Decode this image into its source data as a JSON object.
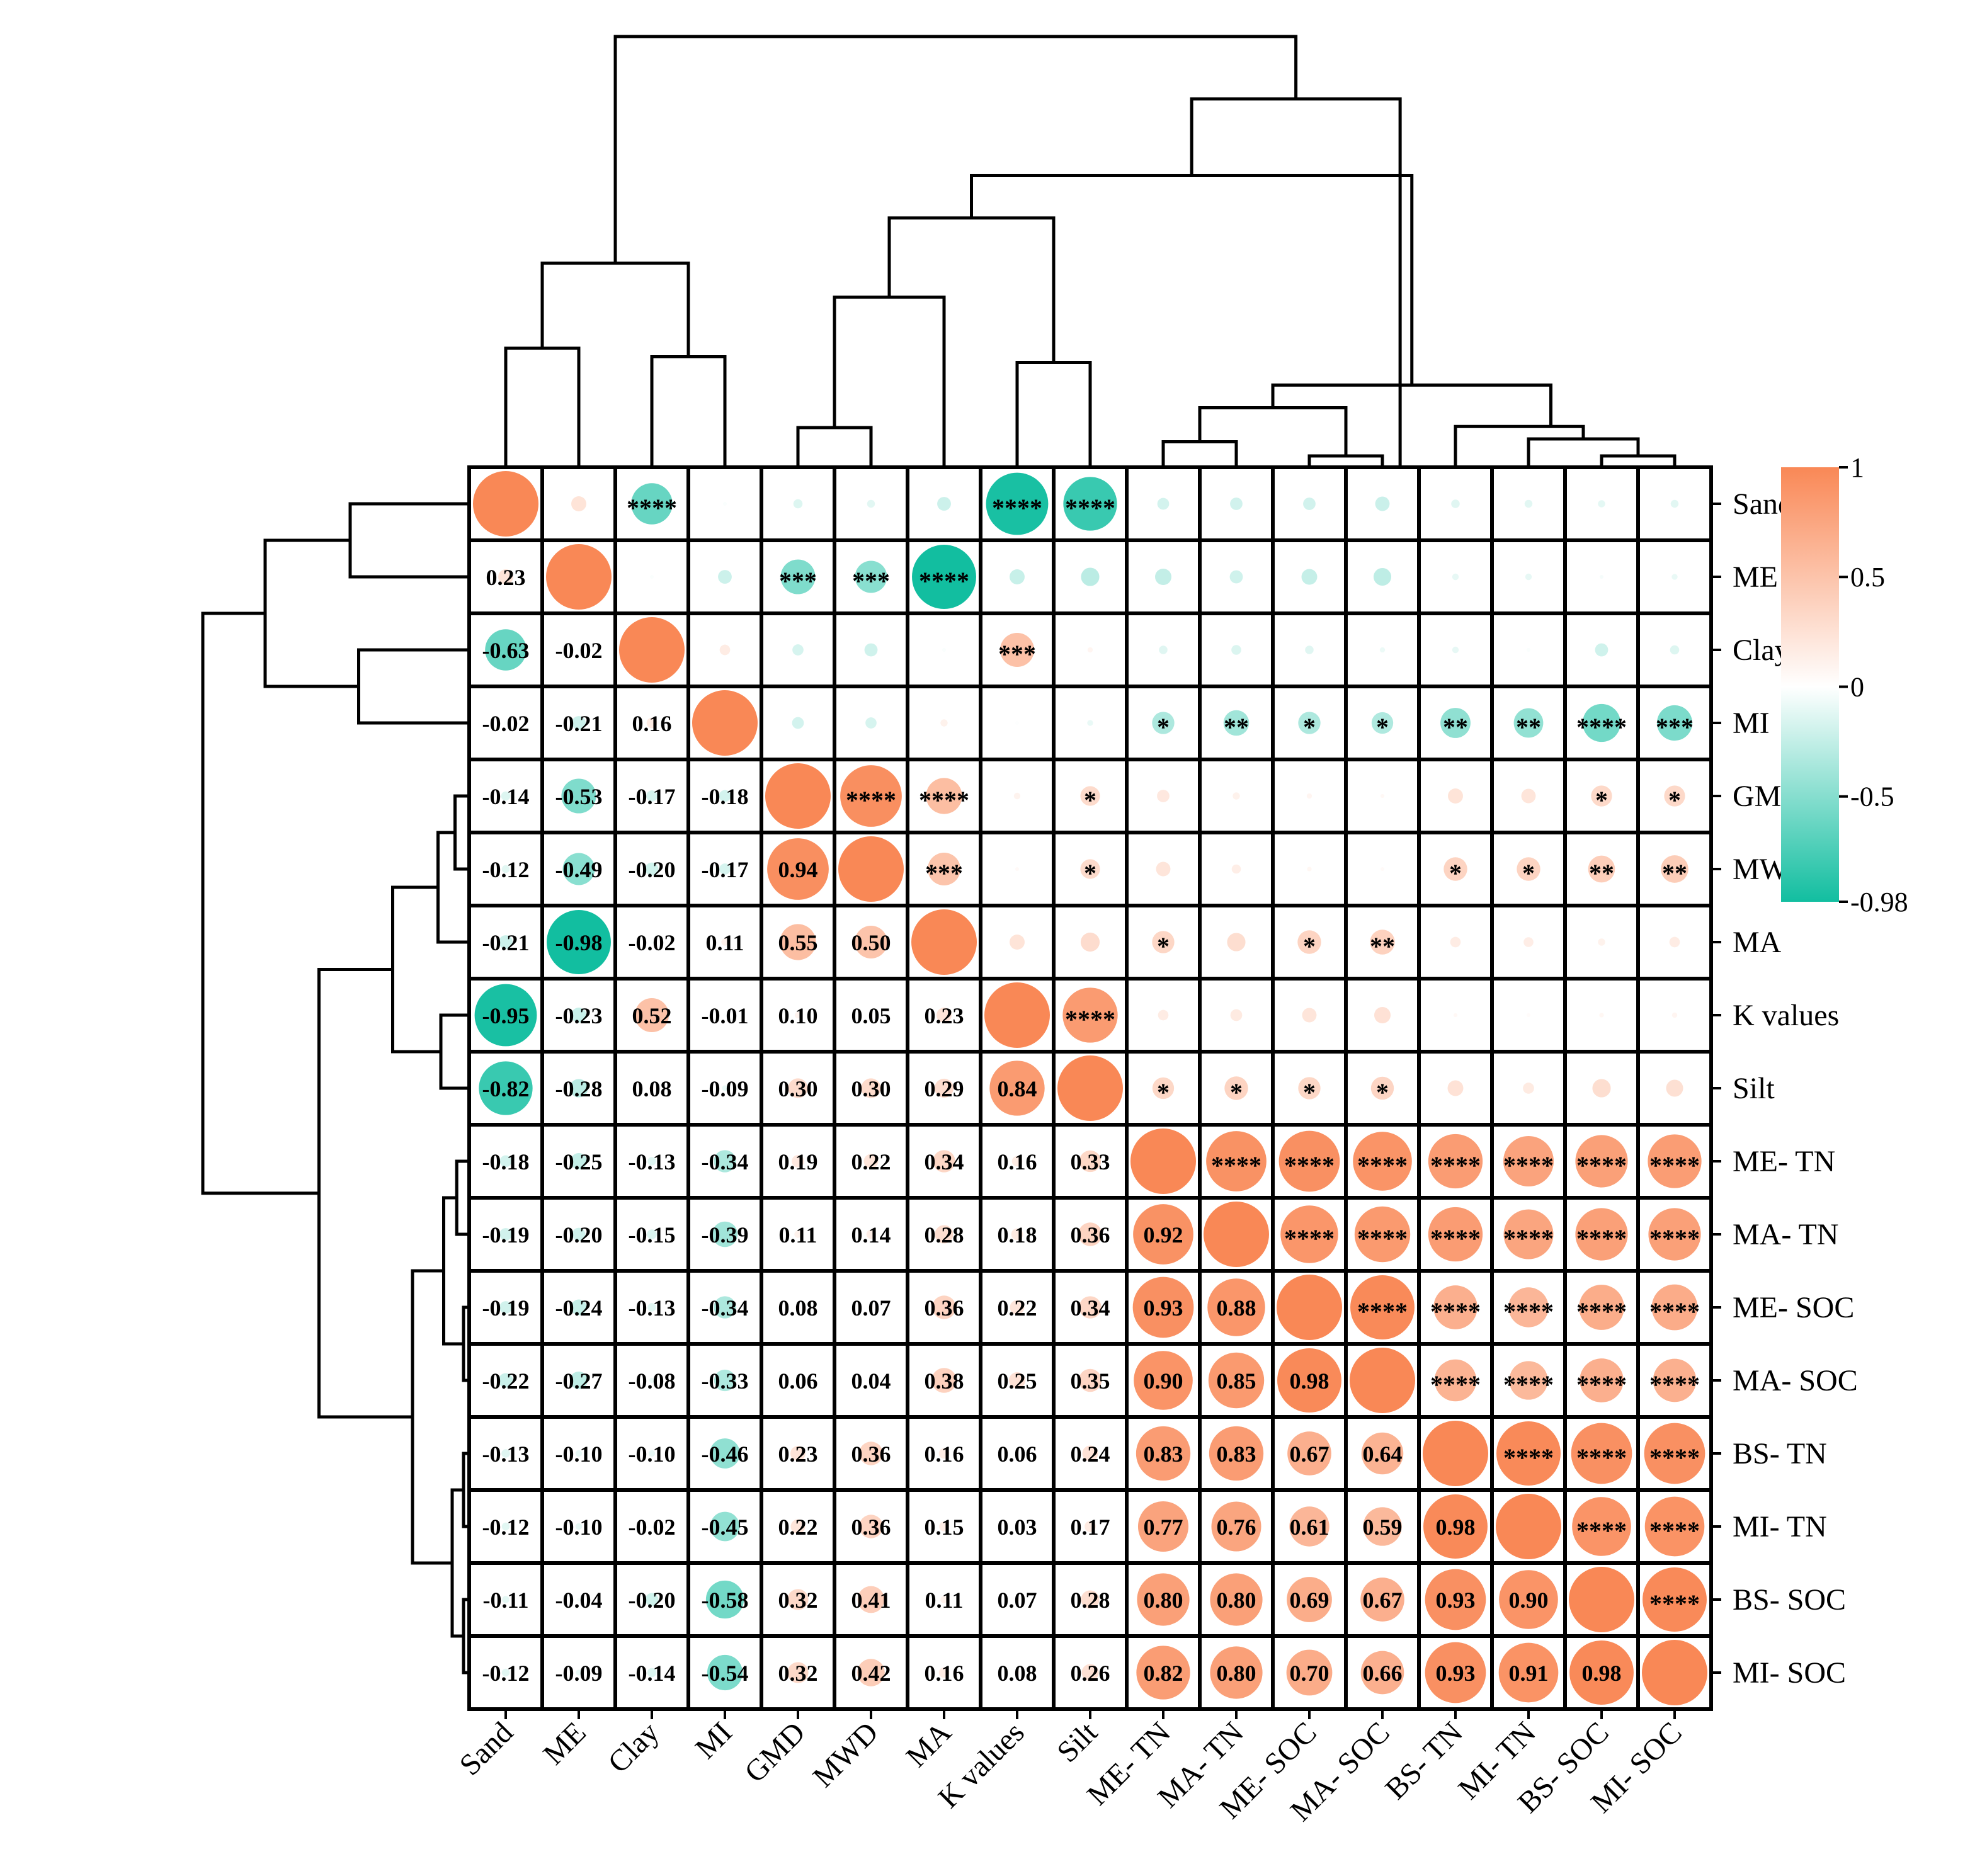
{
  "chart_data": {
    "type": "heatmap",
    "variables": [
      "Sand",
      "ME",
      "Clay",
      "MI",
      "GMD",
      "MWD",
      "MA",
      "K values",
      "Silt",
      "ME- TN",
      "MA- TN",
      "ME- SOC",
      "MA- SOC",
      "BS- TN",
      "MI- TN",
      "BS- SOC",
      "MI- SOC"
    ],
    "lower_triangle_correlations": [
      [],
      [
        0.23
      ],
      [
        -0.63,
        -0.02
      ],
      [
        -0.02,
        -0.21,
        0.16
      ],
      [
        -0.14,
        -0.53,
        -0.17,
        -0.18
      ],
      [
        -0.12,
        -0.49,
        -0.2,
        -0.17,
        0.94
      ],
      [
        -0.21,
        -0.98,
        -0.02,
        0.11,
        0.55,
        0.5
      ],
      [
        -0.95,
        -0.23,
        0.52,
        -0.01,
        0.1,
        0.05,
        0.23
      ],
      [
        -0.82,
        -0.28,
        0.08,
        -0.09,
        0.3,
        0.3,
        0.29,
        0.84
      ],
      [
        -0.18,
        -0.25,
        -0.13,
        -0.34,
        0.19,
        0.22,
        0.34,
        0.16,
        0.33
      ],
      [
        -0.19,
        -0.2,
        -0.15,
        -0.39,
        0.11,
        0.14,
        0.28,
        0.18,
        0.36,
        0.92
      ],
      [
        -0.19,
        -0.24,
        -0.13,
        -0.34,
        0.08,
        0.07,
        0.36,
        0.22,
        0.34,
        0.93,
        0.88
      ],
      [
        -0.22,
        -0.27,
        -0.08,
        -0.33,
        0.06,
        0.04,
        0.38,
        0.25,
        0.35,
        0.9,
        0.85,
        0.98
      ],
      [
        -0.13,
        -0.1,
        -0.1,
        -0.46,
        0.23,
        0.36,
        0.16,
        0.06,
        0.24,
        0.83,
        0.83,
        0.67,
        0.64
      ],
      [
        -0.12,
        -0.1,
        -0.02,
        -0.45,
        0.22,
        0.36,
        0.15,
        0.03,
        0.17,
        0.77,
        0.76,
        0.61,
        0.59,
        0.98
      ],
      [
        -0.11,
        -0.04,
        -0.2,
        -0.58,
        0.32,
        0.41,
        0.11,
        0.07,
        0.28,
        0.8,
        0.8,
        0.69,
        0.67,
        0.93,
        0.9
      ],
      [
        -0.12,
        -0.09,
        -0.14,
        -0.54,
        0.32,
        0.42,
        0.16,
        0.08,
        0.26,
        0.82,
        0.8,
        0.7,
        0.66,
        0.93,
        0.91,
        0.98
      ]
    ],
    "significance_stars": [
      {
        "row": 0,
        "col": 2,
        "stars": "****"
      },
      {
        "row": 0,
        "col": 7,
        "stars": "****"
      },
      {
        "row": 0,
        "col": 8,
        "stars": "****"
      },
      {
        "row": 1,
        "col": 4,
        "stars": "***"
      },
      {
        "row": 1,
        "col": 5,
        "stars": "***"
      },
      {
        "row": 1,
        "col": 6,
        "stars": "****"
      },
      {
        "row": 2,
        "col": 7,
        "stars": "***"
      },
      {
        "row": 3,
        "col": 9,
        "stars": "*"
      },
      {
        "row": 3,
        "col": 10,
        "stars": "**"
      },
      {
        "row": 3,
        "col": 11,
        "stars": "*"
      },
      {
        "row": 3,
        "col": 12,
        "stars": "*"
      },
      {
        "row": 3,
        "col": 13,
        "stars": "**"
      },
      {
        "row": 3,
        "col": 14,
        "stars": "**"
      },
      {
        "row": 3,
        "col": 15,
        "stars": "****"
      },
      {
        "row": 3,
        "col": 16,
        "stars": "***"
      },
      {
        "row": 4,
        "col": 5,
        "stars": "****"
      },
      {
        "row": 4,
        "col": 6,
        "stars": "****"
      },
      {
        "row": 4,
        "col": 8,
        "stars": "*"
      },
      {
        "row": 4,
        "col": 15,
        "stars": "*"
      },
      {
        "row": 4,
        "col": 16,
        "stars": "*"
      },
      {
        "row": 5,
        "col": 6,
        "stars": "***"
      },
      {
        "row": 5,
        "col": 8,
        "stars": "*"
      },
      {
        "row": 5,
        "col": 13,
        "stars": "*"
      },
      {
        "row": 5,
        "col": 14,
        "stars": "*"
      },
      {
        "row": 5,
        "col": 15,
        "stars": "**"
      },
      {
        "row": 5,
        "col": 16,
        "stars": "**"
      },
      {
        "row": 6,
        "col": 9,
        "stars": "*"
      },
      {
        "row": 6,
        "col": 11,
        "stars": "*"
      },
      {
        "row": 6,
        "col": 12,
        "stars": "**"
      },
      {
        "row": 7,
        "col": 8,
        "stars": "****"
      },
      {
        "row": 8,
        "col": 9,
        "stars": "*"
      },
      {
        "row": 8,
        "col": 10,
        "stars": "*"
      },
      {
        "row": 8,
        "col": 11,
        "stars": "*"
      },
      {
        "row": 8,
        "col": 12,
        "stars": "*"
      },
      {
        "row": 9,
        "col": 10,
        "stars": "****"
      },
      {
        "row": 9,
        "col": 11,
        "stars": "****"
      },
      {
        "row": 9,
        "col": 12,
        "stars": "****"
      },
      {
        "row": 9,
        "col": 13,
        "stars": "****"
      },
      {
        "row": 9,
        "col": 14,
        "stars": "****"
      },
      {
        "row": 9,
        "col": 15,
        "stars": "****"
      },
      {
        "row": 9,
        "col": 16,
        "stars": "****"
      },
      {
        "row": 10,
        "col": 11,
        "stars": "****"
      },
      {
        "row": 10,
        "col": 12,
        "stars": "****"
      },
      {
        "row": 10,
        "col": 13,
        "stars": "****"
      },
      {
        "row": 10,
        "col": 14,
        "stars": "****"
      },
      {
        "row": 10,
        "col": 15,
        "stars": "****"
      },
      {
        "row": 10,
        "col": 16,
        "stars": "****"
      },
      {
        "row": 11,
        "col": 12,
        "stars": "****"
      },
      {
        "row": 11,
        "col": 13,
        "stars": "****"
      },
      {
        "row": 11,
        "col": 14,
        "stars": "****"
      },
      {
        "row": 11,
        "col": 15,
        "stars": "****"
      },
      {
        "row": 11,
        "col": 16,
        "stars": "****"
      },
      {
        "row": 12,
        "col": 13,
        "stars": "****"
      },
      {
        "row": 12,
        "col": 14,
        "stars": "****"
      },
      {
        "row": 12,
        "col": 15,
        "stars": "****"
      },
      {
        "row": 12,
        "col": 16,
        "stars": "****"
      },
      {
        "row": 13,
        "col": 14,
        "stars": "****"
      },
      {
        "row": 13,
        "col": 15,
        "stars": "****"
      },
      {
        "row": 13,
        "col": 16,
        "stars": "****"
      },
      {
        "row": 14,
        "col": 15,
        "stars": "****"
      },
      {
        "row": 14,
        "col": 16,
        "stars": "****"
      },
      {
        "row": 15,
        "col": 16,
        "stars": "****"
      }
    ],
    "colorbar": {
      "ticks": [
        "1",
        "0.5",
        "0",
        "-0.5",
        "-0.98"
      ],
      "tick_values": [
        1,
        0.5,
        0,
        -0.5,
        -0.98
      ],
      "range": [
        -0.98,
        1
      ],
      "colors": {
        "positive": "#F98856",
        "zero": "#FFFFFF",
        "negative": "#12BEA0"
      }
    },
    "dendrogram": true,
    "grid": true,
    "legend_position": "right"
  }
}
